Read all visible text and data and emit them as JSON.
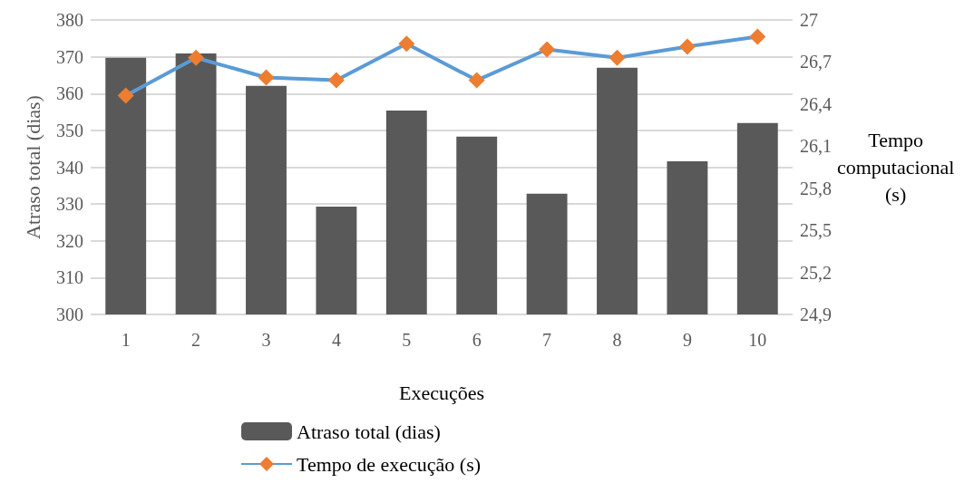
{
  "chart_data": {
    "type": "bar",
    "xlabel": "Execuções",
    "ylabel": "Atraso total (dias)",
    "y2label": "Tempo computacional (s)",
    "categories": [
      "1",
      "2",
      "3",
      "4",
      "5",
      "6",
      "7",
      "8",
      "9",
      "10"
    ],
    "series": [
      {
        "name": "Atraso total (dias)",
        "color": "#595959",
        "values": [
          369.7,
          370.9,
          362.1,
          329.3,
          355.4,
          348.3,
          332.8,
          367,
          341.6,
          352
        ]
      },
      {
        "name": "Tempo de execução (s)",
        "type": "line",
        "axis": "y2",
        "color": "#5b9bd5",
        "marker": "diamond",
        "values": [
          26.46,
          26.73,
          26.59,
          26.57,
          26.83,
          26.57,
          26.79,
          26.73,
          26.81,
          26.88
        ]
      }
    ],
    "ylim": [
      300,
      380
    ],
    "yticks": [
      300,
      310,
      320,
      330,
      340,
      350,
      360,
      370,
      380
    ],
    "y2lim": [
      24.9,
      27
    ],
    "y2ticks": [
      {
        "value": 24.9,
        "label": "24,9"
      },
      {
        "value": 25.2,
        "label": "25,2"
      },
      {
        "value": 25.5,
        "label": "25,5"
      },
      {
        "value": 25.8,
        "label": "25,8"
      },
      {
        "value": 26.1,
        "label": "26,1"
      },
      {
        "value": 26.4,
        "label": "26,4"
      },
      {
        "value": 26.7,
        "label": "26,7"
      },
      {
        "value": 27,
        "label": "27"
      }
    ],
    "grid": "y",
    "legend": "bottom"
  }
}
